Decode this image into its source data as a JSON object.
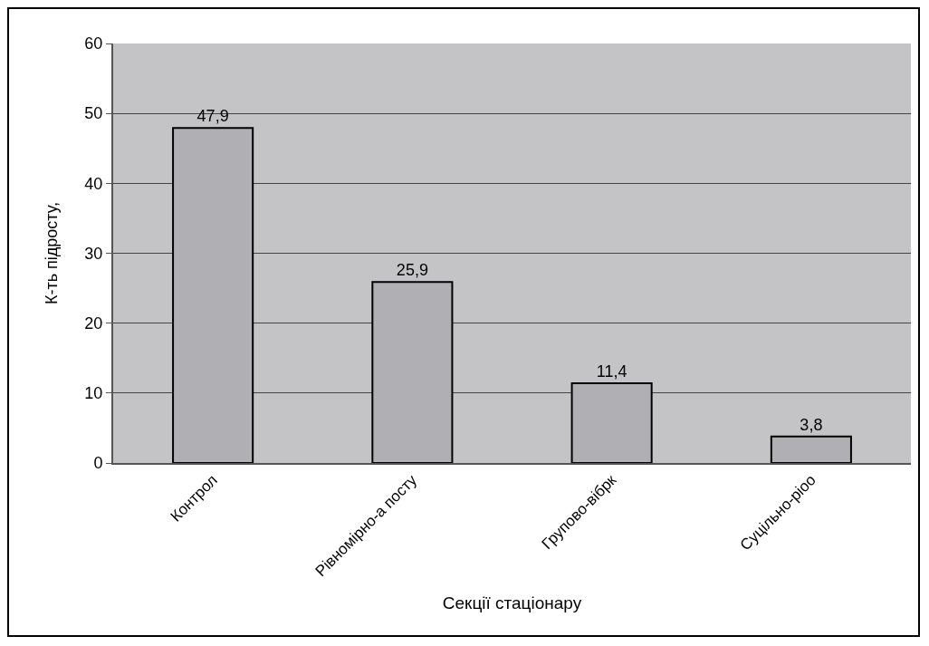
{
  "chart_data": {
    "type": "bar",
    "xlabel": "Секції стаціонару",
    "ylabel": "К-ть підросту,",
    "categories": [
      "Контрол",
      "Рівномірно-а посту",
      "Групово-вібрк",
      "Суцільно-ріоо"
    ],
    "values": [
      47.9,
      25.9,
      11.4,
      3.8
    ],
    "value_labels": [
      "47,9",
      "25,9",
      "11,4",
      "3,8"
    ],
    "color": "#b0b0b4",
    "ylim": [
      0,
      60
    ],
    "yticks": [
      0,
      10,
      20,
      30,
      40,
      50,
      60
    ],
    "grid": "y",
    "legend": false
  }
}
